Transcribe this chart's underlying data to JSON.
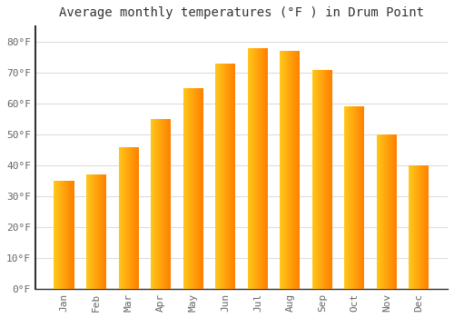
{
  "title": "Average monthly temperatures (°F ) in Drum Point",
  "months": [
    "Jan",
    "Feb",
    "Mar",
    "Apr",
    "May",
    "Jun",
    "Jul",
    "Aug",
    "Sep",
    "Oct",
    "Nov",
    "Dec"
  ],
  "values": [
    35,
    37,
    46,
    55,
    65,
    73,
    78,
    77,
    71,
    59,
    50,
    40
  ],
  "bar_color_left": "#FFD040",
  "bar_color_right": "#F0A000",
  "ylim": [
    0,
    85
  ],
  "yticks": [
    0,
    10,
    20,
    30,
    40,
    50,
    60,
    70,
    80
  ],
  "ytick_labels": [
    "0°F",
    "10°F",
    "20°F",
    "30°F",
    "40°F",
    "50°F",
    "60°F",
    "70°F",
    "80°F"
  ],
  "bg_color": "#ffffff",
  "plot_bg_color": "#ffffff",
  "grid_color": "#dddddd",
  "spine_color": "#333333",
  "tick_color": "#666666",
  "title_color": "#333333",
  "title_fontsize": 10,
  "tick_fontsize": 8
}
